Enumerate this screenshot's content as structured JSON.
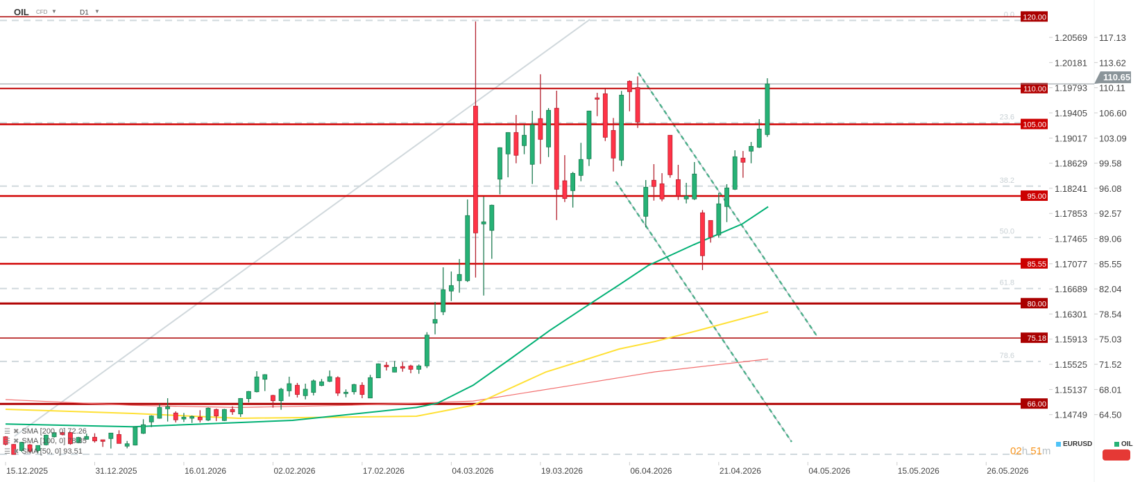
{
  "header": {
    "symbol": "OIL",
    "type": "CFD",
    "timeframe": "D1"
  },
  "sma_legend": [
    {
      "label": "SMA [200, 0] 72.26"
    },
    {
      "label": "SMA [100, 0] 78.85"
    },
    {
      "label": "SMA [50, 0] 93.51"
    }
  ],
  "legend": {
    "eurusd": "EURUSD",
    "oil": "OIL"
  },
  "timer": {
    "hours": "02",
    "h": "h",
    "minutes": "51",
    "m": "m"
  },
  "colors": {
    "up": "#26b276",
    "up_border": "#1b7a4f",
    "down": "#ff3347",
    "down_border": "#b3202e",
    "sma50": "#00b074",
    "sma100": "#ffe033",
    "sma200": "#f26d6d",
    "level": "#cc0000",
    "level_dark": "#aa0000",
    "fib": "#cfd8dc",
    "current": "#8a9499",
    "trend": "#4caf8a",
    "diag": "#d0d8dc",
    "eurusd": "#4fc3f7"
  },
  "chart_data": {
    "type": "candlestick",
    "symbol": "OIL",
    "secondary_axis": "EURUSD",
    "ylim": [
      58.5,
      122.0
    ],
    "x_tick_labels": [
      "15.12.2025",
      "31.12.2025",
      "16.01.2026",
      "02.02.2026",
      "17.02.2026",
      "04.03.2026",
      "19.03.2026",
      "06.04.2026",
      "21.04.2026",
      "04.05.2026",
      "15.05.2026",
      "26.05.2026"
    ],
    "y_ticks": [
      {
        "oil": "117.13",
        "eurusd": "1.20569"
      },
      {
        "oil": "113.62",
        "eurusd": "1.20181"
      },
      {
        "oil": "110.11",
        "eurusd": "1.19793"
      },
      {
        "oil": "106.60",
        "eurusd": "1.19405"
      },
      {
        "oil": "103.09",
        "eurusd": "1.19017"
      },
      {
        "oil": "99.58",
        "eurusd": "1.18629"
      },
      {
        "oil": "96.08",
        "eurusd": "1.18241"
      },
      {
        "oil": "92.57",
        "eurusd": "1.17853"
      },
      {
        "oil": "89.06",
        "eurusd": "1.17465"
      },
      {
        "oil": "85.55",
        "eurusd": "1.17077"
      },
      {
        "oil": "82.04",
        "eurusd": "1.16689"
      },
      {
        "oil": "78.54",
        "eurusd": "1.16301"
      },
      {
        "oil": "75.03",
        "eurusd": "1.15913"
      },
      {
        "oil": "71.52",
        "eurusd": "1.15525"
      },
      {
        "oil": "68.01",
        "eurusd": "1.15137"
      },
      {
        "oil": "64.50",
        "eurusd": "1.14749"
      }
    ],
    "current_price": "110.65",
    "ohlc": [
      [
        61.41,
        61.5,
        60.2,
        60.35
      ],
      [
        60.35,
        60.4,
        58.97,
        58.95
      ],
      [
        59.48,
        60.7,
        59.3,
        60.64
      ],
      [
        60.29,
        60.4,
        59.2,
        59.38
      ],
      [
        59.48,
        60.2,
        59.2,
        60.2
      ],
      [
        60.29,
        61.7,
        60.2,
        61.64
      ],
      [
        61.41,
        62.0,
        61.3,
        61.99
      ],
      [
        62.0,
        62.1,
        61.6,
        61.73
      ],
      [
        62.0,
        62.1,
        60.3,
        60.44
      ],
      [
        60.61,
        61.4,
        60.5,
        61.32
      ],
      [
        61.06,
        61.85,
        61.0,
        61.45
      ],
      [
        61.35,
        61.9,
        60.6,
        60.83
      ],
      [
        60.99,
        61.0,
        60.0,
        60.77
      ],
      [
        61.16,
        61.95,
        59.77,
        61.93
      ],
      [
        61.73,
        62.32,
        60.48,
        60.48
      ],
      [
        60.1,
        60.83,
        59.8,
        60.44
      ],
      [
        60.25,
        62.8,
        60.2,
        62.8
      ],
      [
        61.89,
        63.86,
        61.8,
        63.09
      ],
      [
        63.48,
        64.4,
        62.76,
        64.31
      ],
      [
        63.99,
        65.99,
        63.93,
        65.5
      ],
      [
        65.31,
        66.79,
        63.54,
        65.6
      ],
      [
        64.73,
        64.96,
        63.41,
        63.77
      ],
      [
        63.89,
        64.73,
        63.48,
        64.15
      ],
      [
        63.99,
        64.38,
        63.34,
        64.25
      ],
      [
        64.15,
        65.12,
        63.41,
        63.77
      ],
      [
        63.73,
        65.5,
        63.6,
        65.41
      ],
      [
        65.22,
        65.34,
        63.6,
        64.31
      ],
      [
        63.67,
        65.3,
        63.6,
        65.22
      ],
      [
        65.22,
        65.66,
        64.47,
        64.89
      ],
      [
        64.6,
        66.8,
        64.18,
        66.76
      ],
      [
        66.73,
        67.8,
        66.21,
        67.73
      ],
      [
        67.69,
        70.56,
        67.6,
        69.76
      ],
      [
        69.43,
        70.15,
        67.79,
        70.08
      ],
      [
        67.18,
        67.27,
        65.47,
        66.44
      ],
      [
        66.44,
        68.24,
        65.18,
        68.05
      ],
      [
        67.82,
        69.79,
        67.02,
        68.82
      ],
      [
        68.6,
        68.92,
        66.89,
        67.31
      ],
      [
        67.15,
        68.82,
        66.63,
        68.05
      ],
      [
        67.6,
        69.4,
        67.18,
        69.21
      ],
      [
        68.56,
        69.47,
        68.46,
        69.08
      ],
      [
        69.14,
        70.66,
        69.04,
        69.79
      ],
      [
        69.66,
        69.85,
        67.11,
        67.5
      ],
      [
        67.44,
        68.02,
        66.92,
        67.63
      ],
      [
        67.69,
        68.8,
        67.31,
        68.7
      ],
      [
        68.6,
        69.01,
        66.79,
        67.31
      ],
      [
        66.82,
        70.05,
        66.8,
        69.66
      ],
      [
        69.63,
        71.65,
        69.6,
        71.59
      ],
      [
        71.4,
        71.85,
        70.66,
        71.17
      ],
      [
        70.43,
        71.98,
        70.4,
        71.11
      ],
      [
        71.21,
        71.85,
        70.49,
        70.98
      ],
      [
        71.3,
        71.46,
        70.27,
        70.82
      ],
      [
        70.82,
        71.5,
        70.2,
        71.3
      ],
      [
        71.3,
        76.0,
        71.0,
        75.6
      ],
      [
        77.26,
        80.22,
        75.7,
        77.78
      ],
      [
        78.84,
        85.05,
        78.39,
        81.93
      ],
      [
        81.74,
        84.47,
        80.35,
        82.51
      ],
      [
        83.19,
        86.21,
        81.51,
        84.06
      ],
      [
        83.19,
        94.52,
        83.0,
        92.27
      ],
      [
        107.54,
        119.35,
        83.63,
        89.85
      ],
      [
        91.1,
        94.91,
        81.12,
        91.4
      ],
      [
        90.2,
        93.8,
        86.24,
        93.72
      ],
      [
        97.35,
        101.8,
        95.23,
        101.74
      ],
      [
        100.87,
        103.9,
        97.61,
        103.86
      ],
      [
        103.86,
        106.31,
        99.57,
        100.68
      ],
      [
        102.03,
        104.93,
        100.83,
        103.48
      ],
      [
        99.42,
        106.89,
        96.68,
        104.93
      ],
      [
        105.8,
        111.98,
        99.48,
        102.9
      ],
      [
        101.84,
        107.27,
        100.44,
        106.96
      ],
      [
        107.25,
        109.69,
        91.65,
        95.94
      ],
      [
        97.13,
        100.7,
        94.16,
        94.65
      ],
      [
        95.75,
        98.36,
        93.39,
        98.16
      ],
      [
        97.87,
        102.42,
        97.06,
        100.1
      ],
      [
        100.19,
        106.9,
        99.19,
        106.86
      ],
      [
        108.7,
        109.4,
        106.14,
        108.5
      ],
      [
        109.27,
        109.95,
        102.67,
        103.19
      ],
      [
        104.15,
        105.89,
        98.42,
        100.29
      ],
      [
        100.0,
        109.66,
        99.19,
        109.08
      ],
      [
        111.01,
        111.14,
        106.82,
        109.56
      ],
      [
        110.14,
        111.69,
        104.5,
        105.31
      ],
      [
        92.17,
        97.23,
        90.63,
        96.23
      ],
      [
        97.2,
        99.45,
        94.36,
        96.33
      ],
      [
        96.71,
        98.19,
        94.26,
        94.59
      ],
      [
        103.48,
        103.5,
        97.55,
        97.97
      ],
      [
        97.29,
        99.35,
        94.45,
        95.03
      ],
      [
        94.59,
        96.84,
        93.97,
        94.98
      ],
      [
        94.59,
        99.74,
        94.45,
        98.07
      ],
      [
        92.66,
        93.04,
        84.67,
        86.67
      ],
      [
        91.59,
        91.6,
        88.5,
        89.27
      ],
      [
        89.56,
        95.46,
        89.18,
        93.91
      ],
      [
        93.53,
        96.65,
        91.36,
        96.13
      ],
      [
        95.94,
        101.38,
        95.84,
        100.48
      ],
      [
        100.29,
        101.28,
        97.55,
        99.71
      ],
      [
        101.26,
        102.54,
        99.57,
        101.93
      ],
      [
        101.8,
        105.73,
        101.7,
        104.35
      ],
      [
        103.57,
        111.43,
        103.25,
        110.65
      ]
    ],
    "sma": [
      {
        "name": "SMA [200, 0]",
        "color": "#f26d6d",
        "points": [
          [
            0,
            66.6
          ],
          [
            15.7,
            65.8
          ],
          [
            28.8,
            65.5
          ],
          [
            42,
            65.8
          ],
          [
            50.7,
            66.1
          ],
          [
            57.7,
            66.4
          ],
          [
            71.1,
            68.8
          ],
          [
            80.1,
            70.46
          ],
          [
            94.1,
            72.26
          ]
        ]
      },
      {
        "name": "SMA [100, 0]",
        "color": "#ffe033",
        "points": [
          [
            0,
            65.25
          ],
          [
            15.7,
            64.67
          ],
          [
            28.8,
            63.99
          ],
          [
            50.7,
            64.28
          ],
          [
            57.7,
            65.8
          ],
          [
            62.2,
            68.14
          ],
          [
            66.7,
            70.46
          ],
          [
            71.1,
            72.0
          ],
          [
            75.7,
            73.65
          ],
          [
            80.1,
            74.7
          ],
          [
            85.5,
            76.25
          ],
          [
            94.1,
            78.85
          ]
        ]
      },
      {
        "name": "SMA [50, 0]",
        "color": "#00b074",
        "points": [
          [
            0,
            63.2
          ],
          [
            15.7,
            62.8
          ],
          [
            35.4,
            63.7
          ],
          [
            50.7,
            65.5
          ],
          [
            53.3,
            66.1
          ],
          [
            57.7,
            68.6
          ],
          [
            62.2,
            72.2
          ],
          [
            67.1,
            76.2
          ],
          [
            71.1,
            79.2
          ],
          [
            75.7,
            82.6
          ],
          [
            79.3,
            85.3
          ],
          [
            84.9,
            88.2
          ],
          [
            90.9,
            91.1
          ],
          [
            94.1,
            93.51
          ]
        ]
      }
    ],
    "levels": [
      {
        "value": 120.0,
        "label": "120.00",
        "style": "thin-dark"
      },
      {
        "value": 110.0,
        "label": "110.00",
        "style": "medium"
      },
      {
        "value": 105.0,
        "label": "105.00",
        "style": "thick"
      },
      {
        "value": 95.0,
        "label": "95.00",
        "style": "thick"
      },
      {
        "value": 85.55,
        "label": "85.55",
        "style": "thick"
      },
      {
        "value": 80.0,
        "label": "80.00",
        "style": "thick-dark"
      },
      {
        "value": 75.18,
        "label": "75.18",
        "style": "thin-dark"
      },
      {
        "value": 66.0,
        "label": "66.00",
        "style": "thick-dark"
      }
    ],
    "fibonacci": {
      "high": 119.5,
      "low": 58.97,
      "levels": [
        {
          "ratio": 0.0,
          "label": "0.0"
        },
        {
          "ratio": 0.236,
          "label": "23.6"
        },
        {
          "ratio": 0.382,
          "label": "38.2"
        },
        {
          "ratio": 0.5,
          "label": "50.0"
        },
        {
          "ratio": 0.618,
          "label": "61.8"
        },
        {
          "ratio": 0.786,
          "label": "78.6"
        },
        {
          "ratio": 1.0,
          "label": ""
        }
      ]
    },
    "trendlines": [
      {
        "kind": "diag",
        "from": [
          1.1,
          61.48
        ],
        "to": [
          72.1,
          119.64
        ]
      },
      {
        "kind": "channel",
        "from": [
          78.1,
          112.2
        ],
        "to": [
          100.1,
          75.49
        ]
      },
      {
        "kind": "channel",
        "from": [
          75.3,
          97.03
        ],
        "to": [
          97,
          60.7
        ]
      }
    ]
  }
}
